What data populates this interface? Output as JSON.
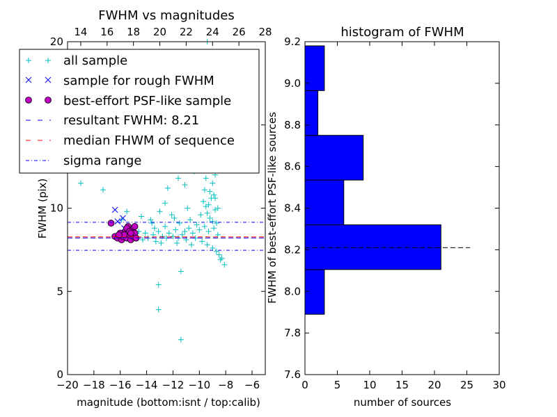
{
  "chart_data": [
    {
      "type": "scatter",
      "title": "FWHM vs magnitudes",
      "xlabel": "magnitude (bottom:isnt / top:calib)",
      "ylabel": "FWHM (pix)",
      "xlim": [
        -20,
        -5
      ],
      "ylim": [
        0,
        20
      ],
      "xticks": [
        -20,
        -18,
        -16,
        -14,
        -12,
        -10,
        -8,
        -6
      ],
      "xtick_labels": [
        "−20",
        "−18",
        "−16",
        "−14",
        "−12",
        "−10",
        "−8",
        "−6"
      ],
      "yticks": [
        0,
        5,
        10,
        15,
        20
      ],
      "ytick_labels": [
        "0",
        "5",
        "10",
        "15",
        "20"
      ],
      "top_xlim": [
        13,
        28
      ],
      "top_xticks": [
        14,
        16,
        18,
        20,
        22,
        24,
        26,
        28
      ],
      "top_xtick_labels": [
        "14",
        "16",
        "18",
        "20",
        "22",
        "24",
        "26",
        "28"
      ],
      "lines": {
        "resultant_fwhm": 8.21,
        "median_fwhm": 8.27,
        "sigma_range": [
          7.47,
          9.15
        ]
      },
      "legend": {
        "position": "upper-left",
        "entries": [
          {
            "label": "all sample",
            "marker": "+",
            "color": "#00bfbf"
          },
          {
            "label": "sample for rough FWHM",
            "marker": "x",
            "color": "#0000ff"
          },
          {
            "label": "best-effort PSF-like sample",
            "marker": "o",
            "color": "#bf00bf"
          },
          {
            "label": "resultant FWHM: 8.21",
            "marker": "--",
            "color": "#0000ff"
          },
          {
            "label": "median FHWM of sequence",
            "marker": "--",
            "color": "#ff0000"
          },
          {
            "label": "sigma range",
            "marker": "-.",
            "color": "#0000ff"
          }
        ]
      },
      "series": [
        {
          "name": "all sample",
          "points": [
            [
              -19.0,
              11.5
            ],
            [
              -17.3,
              11.1
            ],
            [
              -15.9,
              9.3
            ],
            [
              -15.5,
              9.8
            ],
            [
              -15.2,
              8.4
            ],
            [
              -14.8,
              8.3
            ],
            [
              -14.6,
              8.6
            ],
            [
              -14.3,
              8.1
            ],
            [
              -14.1,
              8.5
            ],
            [
              -13.9,
              8.2
            ],
            [
              -13.7,
              9.3
            ],
            [
              -13.5,
              8.4
            ],
            [
              -13.3,
              8.0
            ],
            [
              -13.1,
              8.6
            ],
            [
              -13.0,
              9.8
            ],
            [
              -12.8,
              8.3
            ],
            [
              -12.6,
              8.9
            ],
            [
              -12.5,
              8.2
            ],
            [
              -12.3,
              8.5
            ],
            [
              -12.1,
              9.6
            ],
            [
              -12.0,
              8.3
            ],
            [
              -11.8,
              8.7
            ],
            [
              -11.6,
              8.2
            ],
            [
              -11.5,
              9.1
            ],
            [
              -11.3,
              8.4
            ],
            [
              -11.1,
              8.6
            ],
            [
              -11.0,
              8.1
            ],
            [
              -10.8,
              8.8
            ],
            [
              -10.7,
              9.3
            ],
            [
              -10.5,
              8.5
            ],
            [
              -10.3,
              8.2
            ],
            [
              -10.2,
              9.0
            ],
            [
              -10.0,
              8.7
            ],
            [
              -9.9,
              9.6
            ],
            [
              -9.8,
              8.0
            ],
            [
              -9.6,
              8.9
            ],
            [
              -9.5,
              10.1
            ],
            [
              -9.4,
              7.8
            ],
            [
              -9.3,
              8.6
            ],
            [
              -9.2,
              9.4
            ],
            [
              -9.1,
              10.6
            ],
            [
              -9.0,
              7.6
            ],
            [
              -8.9,
              8.8
            ],
            [
              -8.8,
              9.9
            ],
            [
              -8.7,
              7.4
            ],
            [
              -8.6,
              8.4
            ],
            [
              -8.5,
              7.2
            ],
            [
              -8.4,
              6.9
            ],
            [
              -8.3,
              7.0
            ],
            [
              -8.1,
              6.6
            ],
            [
              -10.4,
              12.2
            ],
            [
              -11.1,
              11.4
            ],
            [
              -12.4,
              11.2
            ],
            [
              -10.0,
              13.6
            ],
            [
              -9.7,
              12.9
            ],
            [
              -9.5,
              11.8
            ],
            [
              -9.3,
              13.1
            ],
            [
              -9.2,
              11.0
            ],
            [
              -9.1,
              12.3
            ],
            [
              -9.0,
              11.5
            ],
            [
              -8.9,
              10.8
            ],
            [
              -8.8,
              12.0
            ],
            [
              -9.7,
              10.4
            ],
            [
              -9.4,
              9.7
            ],
            [
              -9.6,
              11.1
            ],
            [
              -9.3,
              10.2
            ],
            [
              -9.0,
              9.2
            ],
            [
              -8.8,
              10.6
            ],
            [
              -8.7,
              9.1
            ],
            [
              -8.6,
              10.0
            ],
            [
              -9.4,
              20.0
            ],
            [
              -13.1,
              5.4
            ],
            [
              -11.4,
              6.2
            ],
            [
              -13.1,
              3.9
            ],
            [
              -11.4,
              2.1
            ],
            [
              -11.6,
              11.8
            ],
            [
              -12.6,
              10.3
            ],
            [
              -13.6,
              9.1
            ],
            [
              -14.4,
              9.5
            ],
            [
              -10.9,
              10.0
            ],
            [
              -11.9,
              9.4
            ],
            [
              -13.4,
              8.8
            ],
            [
              -12.9,
              7.9
            ],
            [
              -11.7,
              7.9
            ],
            [
              -10.6,
              7.8
            ]
          ]
        },
        {
          "name": "sample for rough FWHM",
          "points": [
            [
              -16.4,
              9.9
            ],
            [
              -16.2,
              9.2
            ],
            [
              -15.8,
              9.4
            ],
            [
              -15.4,
              8.6
            ],
            [
              -15.7,
              8.8
            ],
            [
              -15.0,
              8.3
            ]
          ]
        },
        {
          "name": "best-effort PSF-like sample",
          "points": [
            [
              -16.7,
              9.1
            ],
            [
              -16.4,
              8.3
            ],
            [
              -16.2,
              8.2
            ],
            [
              -16.0,
              8.5
            ],
            [
              -15.9,
              8.1
            ],
            [
              -15.8,
              8.3
            ],
            [
              -15.6,
              8.6
            ],
            [
              -15.5,
              8.2
            ],
            [
              -15.4,
              8.9
            ],
            [
              -15.3,
              8.4
            ],
            [
              -15.2,
              8.1
            ],
            [
              -15.1,
              8.7
            ],
            [
              -15.0,
              8.3
            ],
            [
              -14.9,
              8.5
            ],
            [
              -14.8,
              8.2
            ],
            [
              -15.5,
              8.8
            ],
            [
              -15.3,
              8.6
            ],
            [
              -15.7,
              8.4
            ],
            [
              -16.1,
              8.4
            ],
            [
              -14.9,
              8.9
            ],
            [
              -15.2,
              8.5
            ]
          ]
        }
      ]
    },
    {
      "type": "bar",
      "orientation": "horizontal",
      "title": "histogram of FWHM",
      "xlabel": "number of sources",
      "ylabel": "FWHM of best-effort PSF-like sources",
      "xlim": [
        0,
        30
      ],
      "ylim": [
        7.6,
        9.2
      ],
      "xticks": [
        0,
        5,
        10,
        15,
        20,
        25,
        30
      ],
      "xtick_labels": [
        "0",
        "5",
        "10",
        "15",
        "20",
        "25",
        "30"
      ],
      "yticks": [
        7.6,
        7.8,
        8.0,
        8.2,
        8.4,
        8.6,
        8.8,
        9.0,
        9.2
      ],
      "ytick_labels": [
        "7.6",
        "7.8",
        "8.0",
        "8.2",
        "8.4",
        "8.6",
        "8.8",
        "9.0",
        "9.2"
      ],
      "bin_edges": [
        7.89,
        8.105,
        8.32,
        8.535,
        8.75,
        8.965,
        9.18
      ],
      "counts": [
        3,
        21,
        6,
        9,
        2,
        3
      ],
      "bar_color": "#0000ff",
      "reference_line": {
        "y": 8.21,
        "x_end": 25.5,
        "style": "dashed",
        "color": "#000000"
      }
    }
  ]
}
